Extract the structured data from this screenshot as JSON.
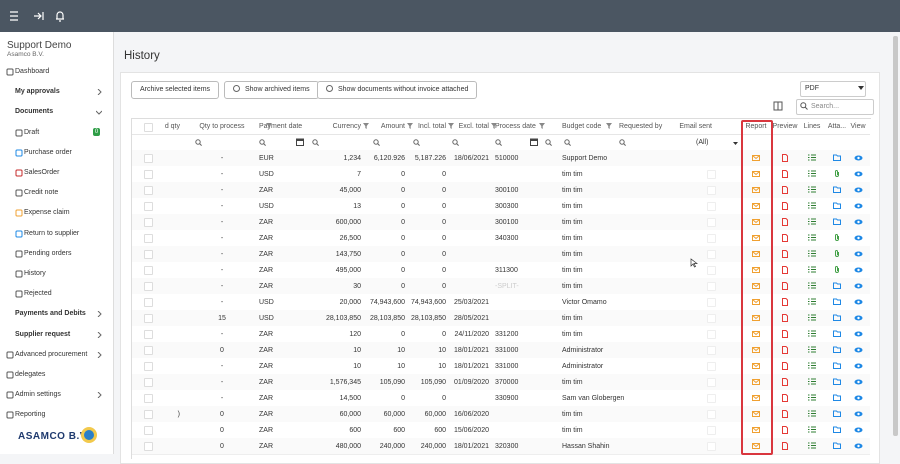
{
  "app": {
    "company": "Support Demo",
    "subcompany": "Asamco B.V.",
    "logo": "ASAMCO B.V."
  },
  "sidebar": [
    {
      "label": "Dashboard"
    },
    {
      "label": "My approvals"
    },
    {
      "label": "Documents"
    },
    {
      "label": "Draft",
      "badge": 0
    },
    {
      "label": "Purchase order"
    },
    {
      "label": "SalesOrder"
    },
    {
      "label": "Credit note"
    },
    {
      "label": "Expense claim"
    },
    {
      "label": "Return to supplier"
    },
    {
      "label": "Pending orders"
    },
    {
      "label": "History"
    },
    {
      "label": "Rejected"
    },
    {
      "label": "Payments and Debits"
    },
    {
      "label": "Supplier request"
    },
    {
      "label": "Advanced procurement"
    },
    {
      "label": "delegates"
    },
    {
      "label": "Admin settings"
    },
    {
      "label": "Reporting"
    }
  ],
  "page": {
    "title": "History",
    "buttons": [
      "Archive selected items",
      "Show archived items",
      "Show documents without invoice attached"
    ],
    "export": "PDF",
    "search": "Search..."
  },
  "table": {
    "headers": [
      "d qty",
      "Qty to process",
      "Payment date",
      "Currency",
      "Amount",
      "Incl. total",
      "Excl. total",
      "Process date",
      "Budget code",
      "Requested by",
      "Email sent",
      "Report",
      "Preview",
      "Lines",
      "Atta...",
      "View"
    ],
    "email_filter": "(All)",
    "rows": [
      [
        null,
        "-",
        "EUR",
        "1,234",
        "6,120.926",
        "5,187.226",
        "18/06/2021",
        "510000",
        "Support Demo"
      ],
      [
        null,
        "-",
        "USD",
        "7",
        "0",
        "0",
        null,
        null,
        "tim tim"
      ],
      [
        null,
        "-",
        "ZAR",
        "45,000",
        "0",
        "0",
        null,
        "300100",
        "tim tim"
      ],
      [
        null,
        "-",
        "USD",
        "13",
        "0",
        "0",
        null,
        "300300",
        "tim tim"
      ],
      [
        null,
        "-",
        "ZAR",
        "600,000",
        "0",
        "0",
        null,
        "300100",
        "tim tim"
      ],
      [
        null,
        "-",
        "ZAR",
        "26,500",
        "0",
        "0",
        null,
        "340300",
        "tim tim"
      ],
      [
        null,
        "-",
        "ZAR",
        "143,750",
        "0",
        "0",
        null,
        null,
        "tim tim"
      ],
      [
        null,
        "-",
        "ZAR",
        "495,000",
        "0",
        "0",
        null,
        "311300",
        "tim tim"
      ],
      [
        null,
        "-",
        "ZAR",
        "30",
        "0",
        "0",
        null,
        "-SPLIT-",
        "tim tim"
      ],
      [
        null,
        "-",
        "USD",
        "20,000",
        "74,943,600",
        "74,943,600",
        "25/03/2021",
        null,
        "Victor Omamo"
      ],
      [
        null,
        "15",
        "USD",
        "28,103,850",
        "28,103,850",
        "28,103,850",
        "28/05/2021",
        null,
        "tim tim"
      ],
      [
        null,
        "-",
        "ZAR",
        "120",
        "0",
        "0",
        "24/11/2020",
        "331200",
        "tim tim"
      ],
      [
        null,
        "0",
        "ZAR",
        "10",
        "10",
        "10",
        "18/01/2021",
        "331000",
        "Administrator"
      ],
      [
        null,
        "-",
        "ZAR",
        "10",
        "10",
        "10",
        "18/01/2021",
        "331000",
        "Administrator"
      ],
      [
        null,
        "-",
        "ZAR",
        "1,576,345",
        "105,090",
        "105,090",
        "01/09/2020",
        "370000",
        "tim tim"
      ],
      [
        null,
        "-",
        "ZAR",
        "14,500",
        "0",
        "0",
        null,
        "330900",
        "Sam van Globergen"
      ],
      [
        ")",
        "0",
        "ZAR",
        "60,000",
        "60,000",
        "60,000",
        "16/06/2020",
        null,
        "tim tim"
      ],
      [
        null,
        "0",
        "ZAR",
        "600",
        "600",
        "600",
        "15/06/2020",
        null,
        "tim tim"
      ],
      [
        null,
        "0",
        "ZAR",
        "480,000",
        "240,000",
        "240,000",
        "18/01/2021",
        "320300",
        "Hassan Shahin"
      ]
    ]
  }
}
